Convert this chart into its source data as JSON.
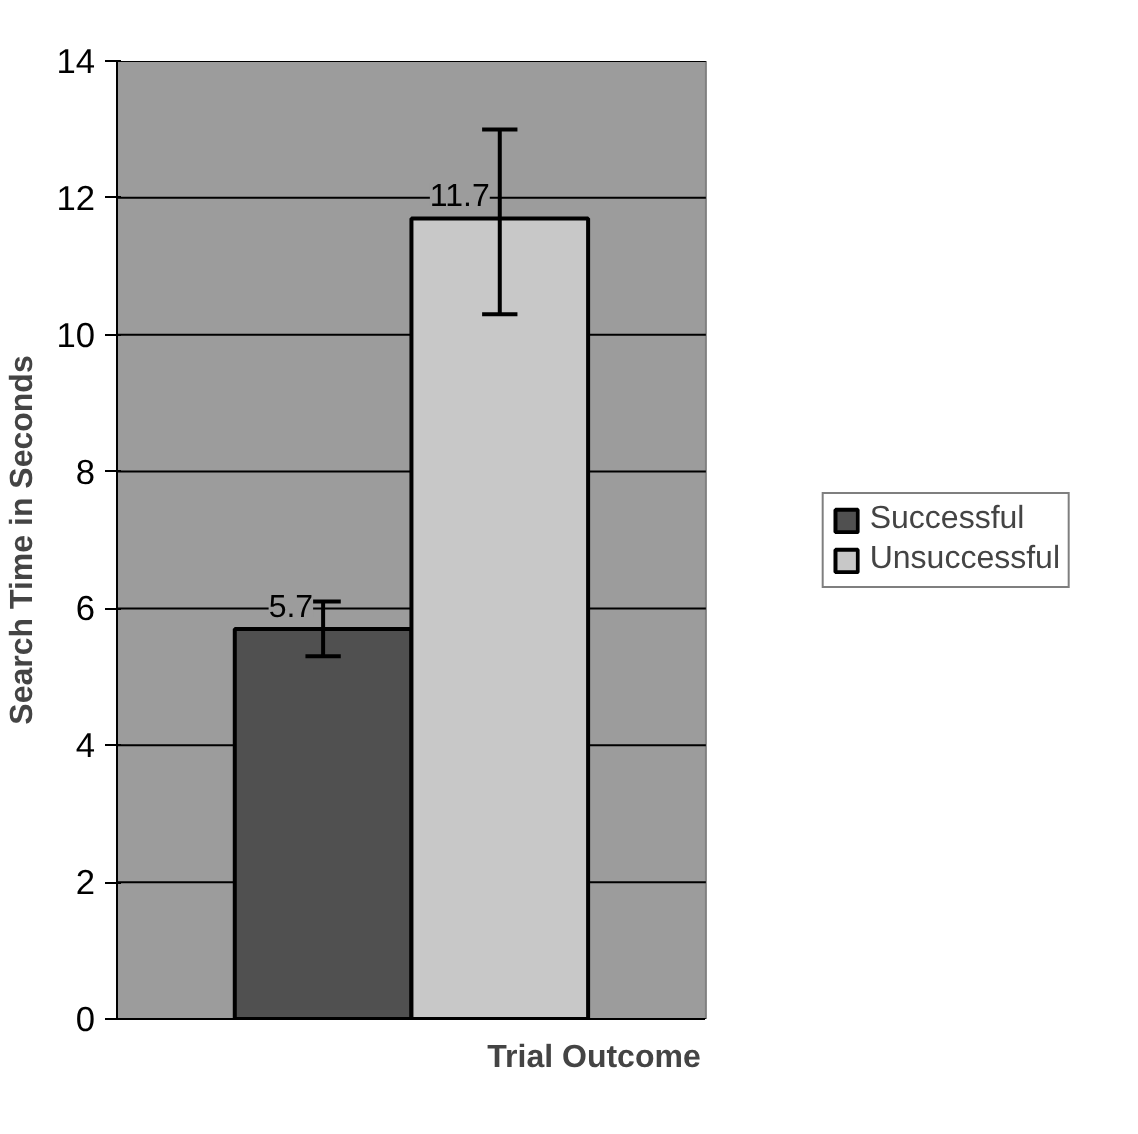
{
  "chart_data": {
    "type": "bar",
    "xlabel": "Trial Outcome",
    "ylabel": "Search Time in Seconds",
    "categories": [
      null
    ],
    "series": [
      {
        "name": "Successful",
        "color": "#505050",
        "values": [
          5.7
        ],
        "errors": [
          [
            5.3,
            6.1
          ]
        ]
      },
      {
        "name": "Unsuccessful",
        "color": "#c8c8c8",
        "values": [
          11.7
        ],
        "errors": [
          [
            10.3,
            13.0
          ]
        ]
      }
    ],
    "ylim": [
      0,
      14
    ],
    "yticks": [
      0,
      2,
      4,
      6,
      8,
      10,
      12,
      14
    ],
    "grid": "y",
    "legend": "right",
    "data_labels": true,
    "tick_labels": "y"
  }
}
